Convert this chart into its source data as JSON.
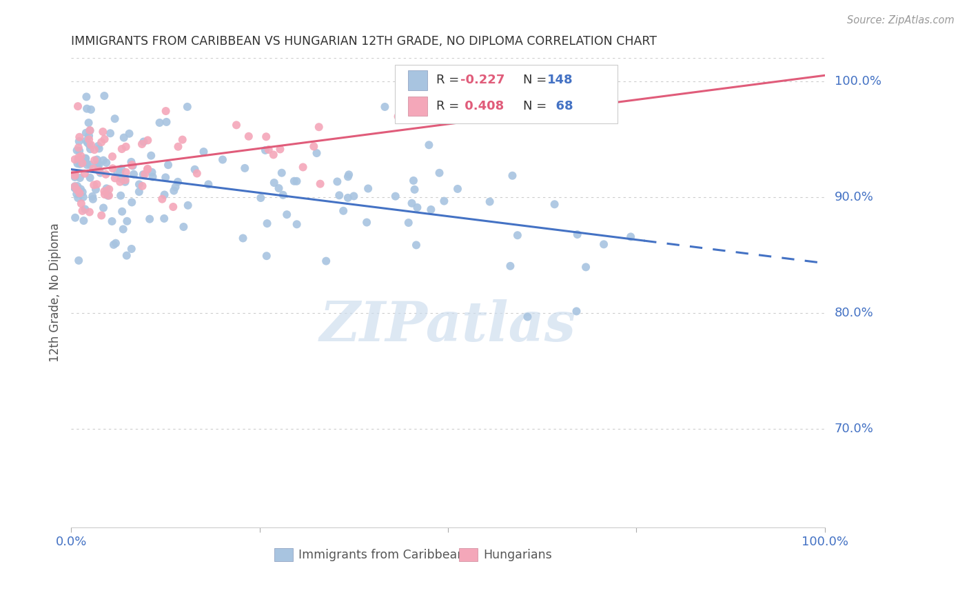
{
  "title": "IMMIGRANTS FROM CARIBBEAN VS HUNGARIAN 12TH GRADE, NO DIPLOMA CORRELATION CHART",
  "source": "Source: ZipAtlas.com",
  "ylabel": "12th Grade, No Diploma",
  "ytick_labels": [
    "100.0%",
    "90.0%",
    "80.0%",
    "70.0%"
  ],
  "ytick_values": [
    1.0,
    0.9,
    0.8,
    0.7
  ],
  "xlim": [
    0.0,
    1.0
  ],
  "ylim": [
    0.615,
    1.02
  ],
  "legend_r_caribbean": "-0.227",
  "legend_n_caribbean": "148",
  "legend_r_hungarian": "0.408",
  "legend_n_hungarian": "68",
  "color_caribbean": "#a8c4e0",
  "color_hungarian": "#f4a7b9",
  "color_trendline_caribbean": "#4472c4",
  "color_trendline_hungarian": "#e05c7a",
  "color_title": "#333333",
  "color_axis_labels": "#4472c4",
  "color_legend_r_neg": "#e05c7a",
  "color_legend_r_pos": "#e05c7a",
  "color_legend_n": "#4472c4",
  "watermark": "ZIPatlas",
  "trendline_carib_x0": 0.0,
  "trendline_carib_y0": 0.924,
  "trendline_carib_x1": 1.0,
  "trendline_carib_y1": 0.843,
  "trendline_carib_solid_end": 0.76,
  "trendline_hung_x0": 0.0,
  "trendline_hung_y0": 0.921,
  "trendline_hung_x1": 1.0,
  "trendline_hung_y1": 1.005,
  "scatter_seed": 99
}
